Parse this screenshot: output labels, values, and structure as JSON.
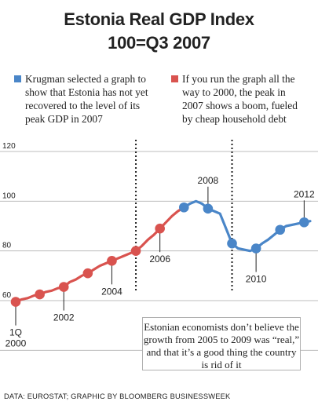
{
  "title_line1": "Estonia Real GDP Index",
  "title_line2": "100=Q3 2007",
  "legend": [
    {
      "text": "Krugman selected a graph to show that Estonia has not yet recovered to the level of its peak GDP in 2007",
      "color": "#4a86c8"
    },
    {
      "text": "If you run the graph all the way to 2000, the peak in 2007 shows a boom, fueled by cheap household debt",
      "color": "#d9534f"
    }
  ],
  "note": "Estonian economists don’t believe the growth from 2005 to 2009 was “real,” and that it’s a good thing the country is rid of it",
  "source": "DATA: EUROSTAT; GRAPHIC BY BLOOMBERG BUSINESSWEEK",
  "chart_data": {
    "type": "line",
    "title": "Estonia Real GDP Index",
    "subtitle": "100=Q3 2007",
    "xlabel": "",
    "ylabel": "",
    "ylim": [
      45,
      125
    ],
    "yticks": [
      60,
      80,
      100,
      120
    ],
    "grid": true,
    "x": [
      2000.0,
      2000.25,
      2000.5,
      2000.75,
      2001.0,
      2001.25,
      2001.5,
      2001.75,
      2002.0,
      2002.25,
      2002.5,
      2002.75,
      2003.0,
      2003.25,
      2003.5,
      2003.75,
      2004.0,
      2004.25,
      2004.5,
      2004.75,
      2005.0,
      2005.25,
      2005.5,
      2005.75,
      2006.0,
      2006.25,
      2006.5,
      2006.75,
      2007.0,
      2007.25,
      2007.5,
      2007.75,
      2008.0,
      2008.25,
      2008.5,
      2008.75,
      2009.0,
      2009.25,
      2009.5,
      2009.75,
      2010.0,
      2010.25,
      2010.5,
      2010.75,
      2011.0,
      2011.25,
      2011.5,
      2011.75,
      2012.0,
      2012.25
    ],
    "series": [
      {
        "color": "#d9534f",
        "x": [
          2000.0,
          2000.25,
          2000.5,
          2000.75,
          2001.0,
          2001.25,
          2001.5,
          2001.75,
          2002.0,
          2002.25,
          2002.5,
          2002.75,
          2003.0,
          2003.25,
          2003.5,
          2003.75,
          2004.0,
          2004.25,
          2004.5,
          2004.75,
          2005.0
        ],
        "values": [
          59.5,
          60.5,
          61.0,
          62.0,
          62.5,
          63.5,
          64.0,
          65.0,
          65.5,
          67.5,
          68.5,
          70.0,
          71.0,
          72.5,
          74.0,
          75.0,
          76.0,
          77.0,
          78.0,
          79.0,
          80.0
        ]
      },
      {
        "color": "#d9534f",
        "x": [
          2005.0,
          2005.25,
          2005.5,
          2005.75,
          2006.0,
          2006.25,
          2006.5,
          2006.75,
          2007.0
        ],
        "values": [
          80.0,
          82.0,
          84.5,
          86.5,
          89.0,
          91.5,
          94.0,
          96.0,
          97.5
        ]
      },
      {
        "color": "#4a86c8",
        "x": [
          2007.0,
          2007.25,
          2007.5,
          2007.75,
          2008.0,
          2008.25,
          2008.5,
          2008.75,
          2009.0,
          2009.25,
          2009.5,
          2009.75,
          2010.0,
          2010.25,
          2010.5,
          2010.75,
          2011.0,
          2011.25,
          2011.5,
          2011.75,
          2012.0,
          2012.25
        ],
        "values": [
          97.5,
          99.0,
          100.0,
          99.0,
          97.0,
          96.0,
          95.0,
          89.0,
          83.0,
          81.0,
          80.5,
          80.0,
          81.0,
          83.0,
          84.5,
          86.5,
          88.5,
          90.0,
          90.5,
          91.0,
          91.5,
          92.0
        ]
      }
    ],
    "red_markers_x": [
      2000.0,
      2001.0,
      2002.0,
      2003.0,
      2004.0,
      2005.0,
      2006.0
    ],
    "blue_markers_x": [
      2007.0,
      2008.0,
      2009.0,
      2010.0,
      2011.0,
      2012.0
    ],
    "annotations": [
      {
        "text_lines": [
          "1Q",
          "2000"
        ],
        "x": 2000.0,
        "value": 59.5,
        "dir": "down"
      },
      {
        "text_lines": [
          "2002"
        ],
        "x": 2002.0,
        "value": 65.5,
        "dir": "down"
      },
      {
        "text_lines": [
          "2004"
        ],
        "x": 2004.0,
        "value": 76.0,
        "dir": "down"
      },
      {
        "text_lines": [
          "2006"
        ],
        "x": 2006.0,
        "value": 89.0,
        "dir": "down"
      },
      {
        "text_lines": [
          "2008"
        ],
        "x": 2008.0,
        "value": 97.0,
        "dir": "up"
      },
      {
        "text_lines": [
          "2010"
        ],
        "x": 2010.0,
        "value": 81.0,
        "dir": "down"
      },
      {
        "text_lines": [
          "2012"
        ],
        "x": 2012.0,
        "value": 91.5,
        "dir": "up"
      }
    ],
    "dotted_lines_x": [
      2005.0,
      2009.0
    ]
  }
}
